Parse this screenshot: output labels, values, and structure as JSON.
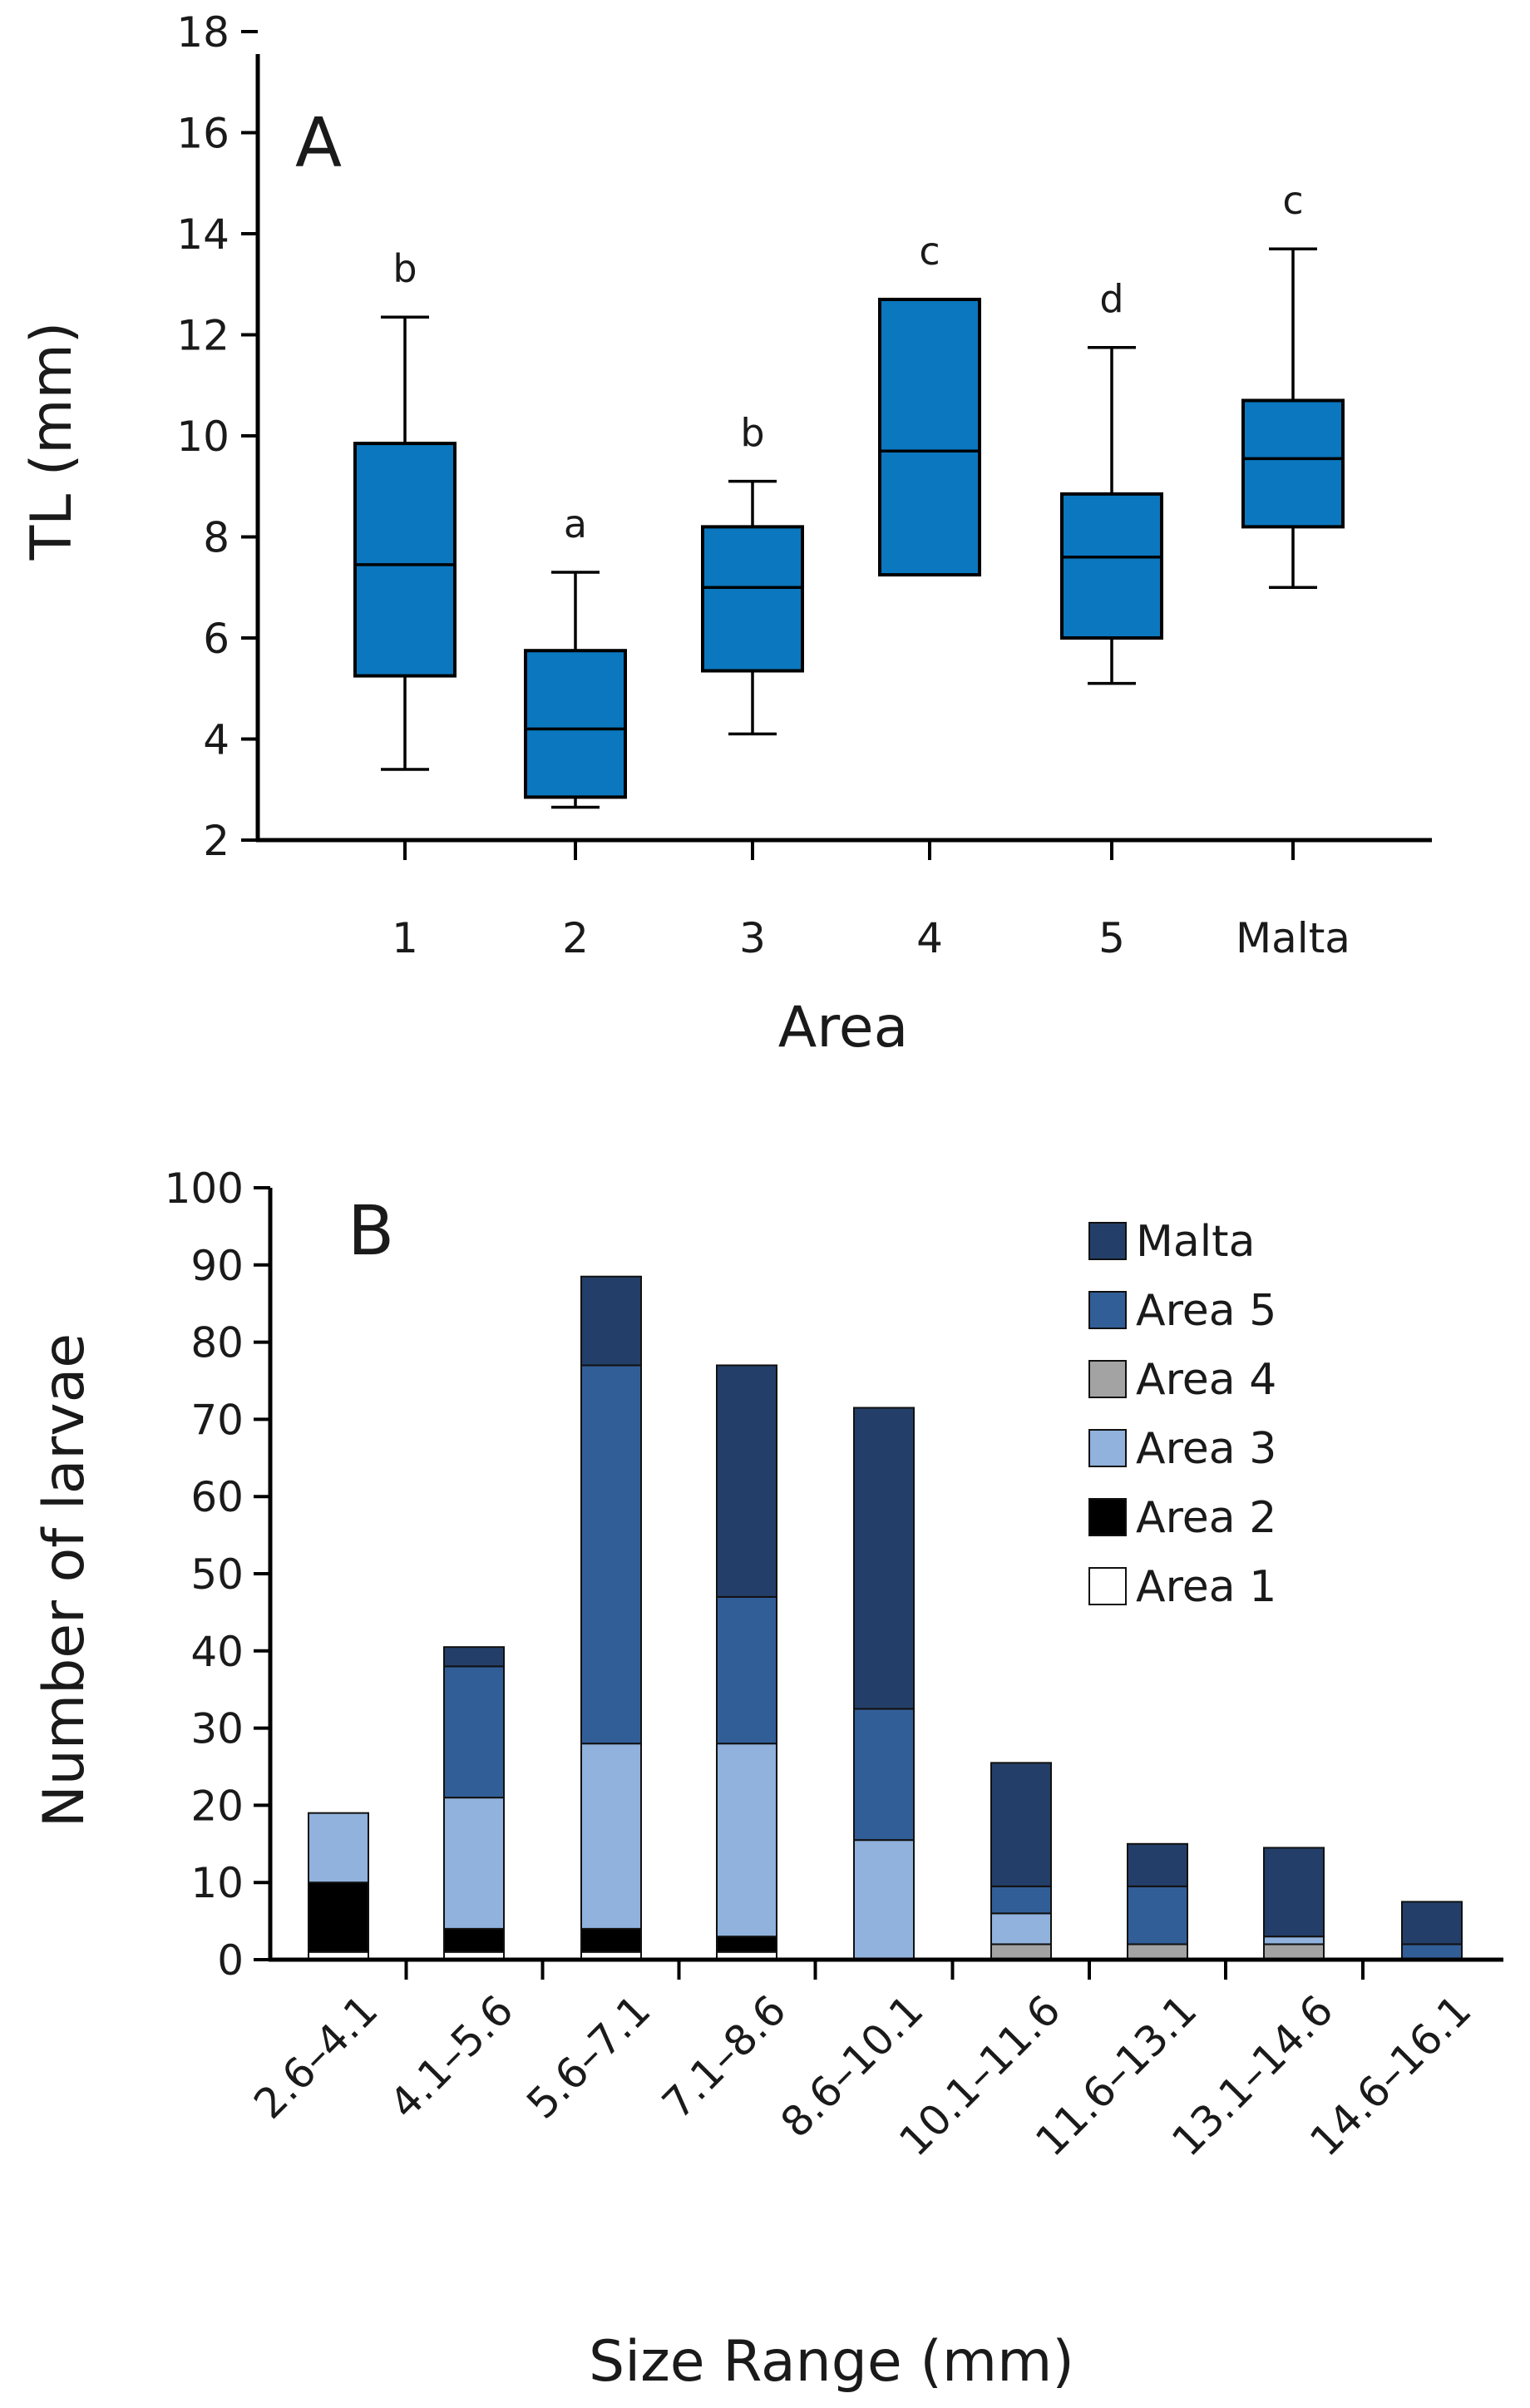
{
  "colors": {
    "box_fill": "#0b77be",
    "Malta": "#233f69",
    "Area 5": "#325e97",
    "Area 4": "#a3a3a3",
    "Area 3": "#90b2dc",
    "Area 2": "#000000",
    "Area 1": "#ffffff"
  },
  "chart_data": [
    {
      "type": "box",
      "panel": "A",
      "title": "",
      "xlabel": "Area",
      "ylabel": "TL (mm)",
      "ylim": [
        2,
        18
      ],
      "yticks": [
        "2",
        "4",
        "6",
        "8",
        "10",
        "12",
        "14",
        "16",
        "18"
      ],
      "categories": [
        "1",
        "2",
        "3",
        "4",
        "5",
        "Malta"
      ],
      "boxes": [
        {
          "category": "1",
          "whisker_low": 3.4,
          "q1": 5.25,
          "median": 7.45,
          "q3": 9.85,
          "whisker_high": 12.35,
          "letter": "b"
        },
        {
          "category": "2",
          "whisker_low": 2.65,
          "q1": 2.85,
          "median": 4.2,
          "q3": 5.75,
          "whisker_high": 7.3,
          "letter": "a"
        },
        {
          "category": "3",
          "whisker_low": 4.1,
          "q1": 5.35,
          "median": 7.0,
          "q3": 8.2,
          "whisker_high": 9.1,
          "letter": "b"
        },
        {
          "category": "4",
          "whisker_low": 7.25,
          "q1": 7.25,
          "median": 9.7,
          "q3": 12.7,
          "whisker_high": 12.7,
          "letter": "c"
        },
        {
          "category": "5",
          "whisker_low": 5.1,
          "q1": 6.0,
          "median": 7.6,
          "q3": 8.85,
          "whisker_high": 11.75,
          "letter": "d"
        },
        {
          "category": "Malta",
          "whisker_low": 7.0,
          "q1": 8.2,
          "median": 9.55,
          "q3": 10.7,
          "whisker_high": 13.7,
          "letter": "c"
        }
      ]
    },
    {
      "type": "bar",
      "stacked": true,
      "panel": "B",
      "title": "",
      "xlabel": "Size Range (mm)",
      "ylabel": "Number of larvae",
      "ylim": [
        0,
        100
      ],
      "yticks": [
        "0",
        "10",
        "20",
        "30",
        "40",
        "50",
        "60",
        "70",
        "80",
        "90",
        "100"
      ],
      "categories": [
        "2.6–4.1",
        "4.1–5.6",
        "5.6–7.1",
        "7.1–8.6",
        "8.6–10.1",
        "10.1–11.6",
        "11.6–13.1",
        "13.1–14.6",
        "14.6–16.1"
      ],
      "legend": [
        "Malta",
        "Area 5",
        "Area 4",
        "Area 3",
        "Area 2",
        "Area 1"
      ],
      "legend_position": "top-right",
      "series": [
        {
          "name": "Area 1",
          "values": [
            1,
            1,
            1,
            1,
            0,
            0,
            0,
            0,
            0
          ]
        },
        {
          "name": "Area 2",
          "values": [
            9,
            3,
            3,
            2,
            0,
            0,
            0,
            0,
            0
          ]
        },
        {
          "name": "Area 4",
          "values": [
            0,
            0,
            0,
            0,
            0,
            2,
            2,
            2,
            0
          ]
        },
        {
          "name": "Area 3",
          "values": [
            9,
            17,
            24,
            25,
            15.5,
            4,
            0,
            1,
            0
          ]
        },
        {
          "name": "Area 5",
          "values": [
            0,
            17,
            49,
            19,
            17,
            3.5,
            7.5,
            0,
            2
          ]
        },
        {
          "name": "Malta",
          "values": [
            0,
            2.5,
            11.5,
            30,
            39,
            16,
            5.5,
            11.5,
            5.5
          ]
        }
      ]
    }
  ]
}
